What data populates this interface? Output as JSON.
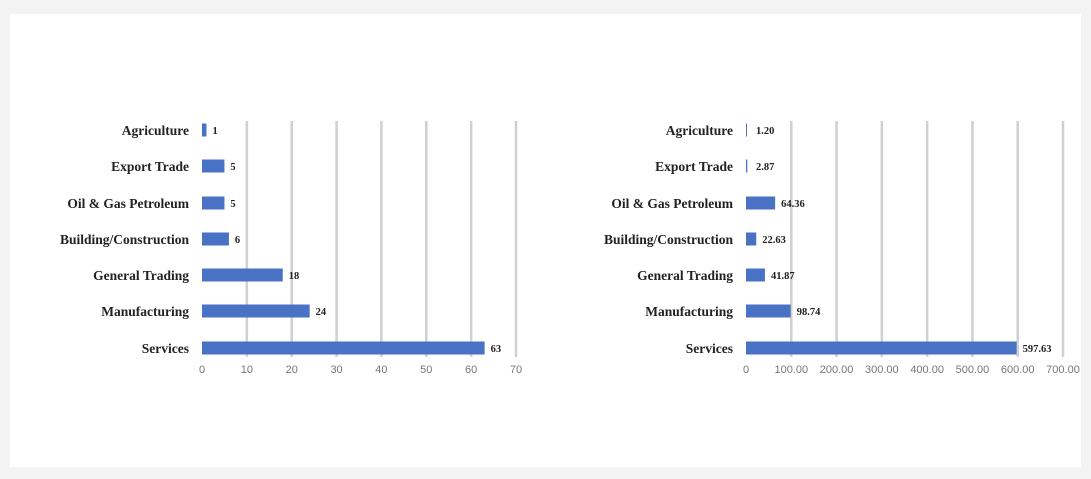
{
  "chart_data": [
    {
      "type": "bar",
      "orientation": "horizontal",
      "categories": [
        "Agriculture",
        "Export Trade",
        "Oil & Gas Petroleum",
        "Building/Construction",
        "General Trading",
        "Manufacturing",
        "Services"
      ],
      "values": [
        1,
        5,
        5,
        6,
        18,
        24,
        63
      ],
      "value_labels": [
        "1",
        "5",
        "5",
        "6",
        "18",
        "24",
        "63"
      ],
      "xlim": [
        0,
        70
      ],
      "ticks": [
        "0",
        "10",
        "20",
        "30",
        "40",
        "50",
        "60",
        "70"
      ],
      "grid": true,
      "color": "#4a72c4"
    },
    {
      "type": "bar",
      "orientation": "horizontal",
      "categories": [
        "Agriculture",
        "Export Trade",
        "Oil & Gas Petroleum",
        "Building/Construction",
        "General Trading",
        "Manufacturing",
        "Services"
      ],
      "values": [
        1.2,
        2.87,
        64.36,
        22.63,
        41.87,
        98.74,
        597.63
      ],
      "value_labels": [
        "1.20",
        "2.87",
        "64.36",
        "22.63",
        "41.87",
        "98.74",
        "597.63"
      ],
      "xlim": [
        0,
        700
      ],
      "ticks": [
        "0",
        "100.00",
        "200.00",
        "300.00",
        "400.00",
        "500.00",
        "600.00",
        "700.00"
      ],
      "grid": true,
      "color": "#4a72c4"
    }
  ]
}
